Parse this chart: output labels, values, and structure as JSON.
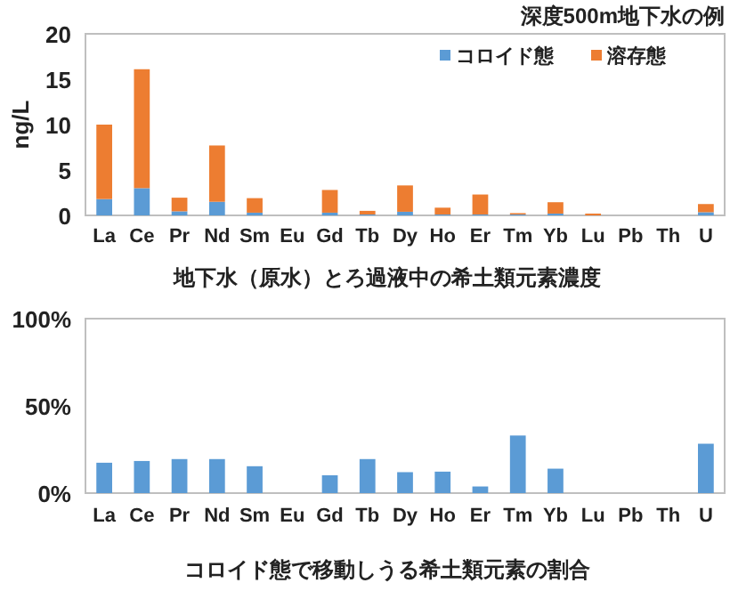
{
  "chart_data": [
    {
      "type": "bar",
      "title": "深度500m地下水の例",
      "ylabel": "ng/L",
      "stacked": true,
      "legend": "top right",
      "categories": [
        "La",
        "Ce",
        "Pr",
        "Nd",
        "Sm",
        "Eu",
        "Gd",
        "Tb",
        "Dy",
        "Ho",
        "Er",
        "Tm",
        "Yb",
        "Lu",
        "Pb",
        "Th",
        "U"
      ],
      "series": [
        {
          "name": "コロイド態",
          "color": "#5b9bd5",
          "values": [
            1.8,
            3.0,
            0.45,
            1.5,
            0.3,
            0,
            0.3,
            0.1,
            0.4,
            0.1,
            0.1,
            0.1,
            0.2,
            0,
            0,
            0,
            0.35
          ]
        },
        {
          "name": "溶存態",
          "color": "#ed7d31",
          "values": [
            8.2,
            13.1,
            1.5,
            6.2,
            1.6,
            0,
            2.5,
            0.4,
            2.9,
            0.75,
            2.2,
            0.15,
            1.25,
            0.2,
            0,
            0,
            0.9
          ]
        }
      ],
      "ylim": [
        0,
        20
      ],
      "yticks": [
        0,
        5,
        10,
        15,
        20
      ],
      "annotations": [
        "地下水（原水）とろ過液中の希土類元素濃度"
      ]
    },
    {
      "type": "bar",
      "categories": [
        "La",
        "Ce",
        "Pr",
        "Nd",
        "Sm",
        "Eu",
        "Gd",
        "Tb",
        "Dy",
        "Ho",
        "Er",
        "Tm",
        "Yb",
        "Lu",
        "Pb",
        "Th",
        "U"
      ],
      "values": [
        17.4,
        18.4,
        19.5,
        19.5,
        15.4,
        0,
        10.2,
        19.5,
        12,
        12.3,
        3.8,
        33,
        14,
        0,
        0,
        0,
        28.3
      ],
      "color": "#5b9bd5",
      "ylim": [
        0,
        100
      ],
      "yticks": [
        {
          "value": 0,
          "label": "0%"
        },
        {
          "value": 50,
          "label": "50%"
        },
        {
          "value": 100,
          "label": "100%"
        }
      ],
      "annotations": [
        "コロイド態で移動しうる希土類元素の割合"
      ]
    }
  ]
}
